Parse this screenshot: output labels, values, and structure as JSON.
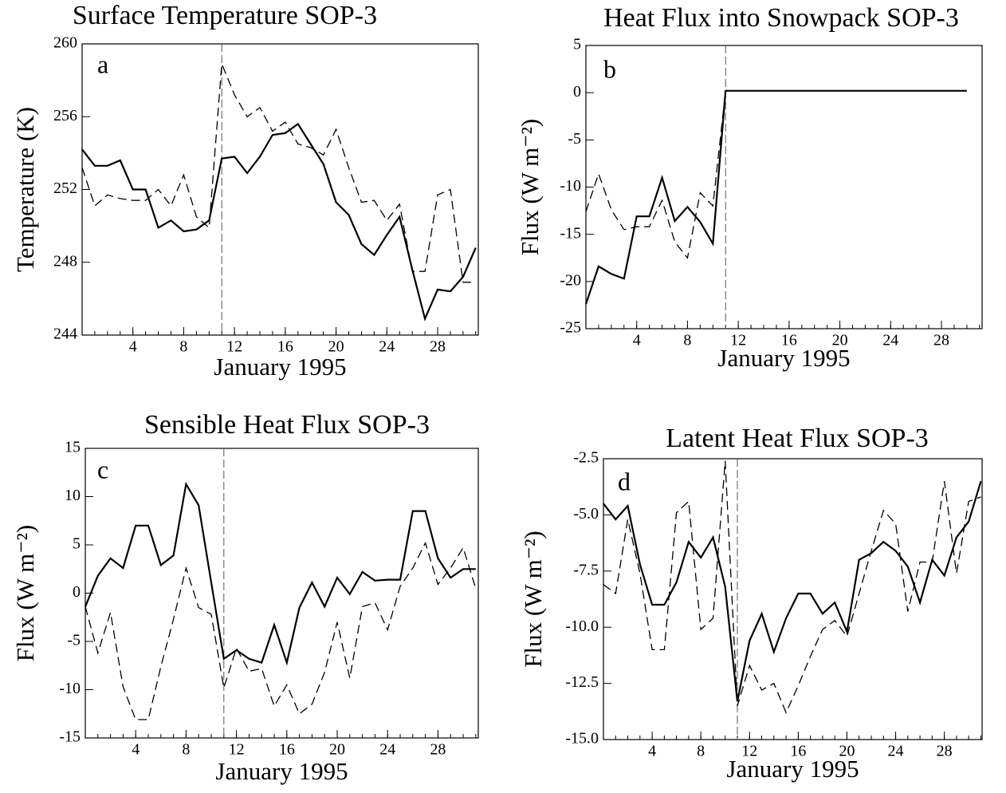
{
  "chart_data": [
    {
      "type": "line",
      "title": "Surface Temperature  SOP-3",
      "panel_label": "a",
      "x_label": "January 1995",
      "y_label": "Temperature (K)",
      "x": [
        0,
        1,
        2,
        3,
        4,
        5,
        6,
        7,
        8,
        9,
        10,
        11,
        12,
        13,
        14,
        15,
        16,
        17,
        18,
        19,
        20,
        21,
        22,
        23,
        24,
        25,
        26,
        27,
        28,
        29,
        30,
        31
      ],
      "xlim": [
        0,
        31.2
      ],
      "xticks": [
        4,
        8,
        12,
        16,
        20,
        24,
        28
      ],
      "ylim": [
        244,
        260
      ],
      "yticks": [
        244,
        248,
        252,
        256,
        260
      ],
      "vline_x": 11,
      "series": [
        {
          "color": "#000000",
          "dashed": false,
          "values": [
            254.2,
            253.3,
            253.3,
            253.6,
            252.0,
            252.0,
            249.9,
            250.3,
            249.7,
            249.8,
            250.3,
            253.7,
            253.8,
            252.9,
            253.8,
            255.0,
            255.1,
            255.6,
            254.5,
            253.4,
            251.3,
            250.6,
            249.0,
            248.4,
            249.5,
            250.5,
            247.6,
            244.9,
            246.5,
            246.4,
            247.2,
            248.8
          ]
        },
        {
          "color": "#000000",
          "dashed": true,
          "values": [
            253.2,
            251.1,
            251.7,
            251.5,
            251.4,
            251.4,
            252.0,
            251.1,
            252.8,
            250.5,
            249.9,
            258.9,
            257.2,
            256.0,
            256.5,
            255.2,
            255.7,
            254.5,
            254.3,
            253.9,
            255.3,
            253.2,
            251.3,
            251.4,
            250.3,
            251.2,
            247.5,
            247.5,
            251.7,
            252.0,
            246.9,
            246.9
          ]
        }
      ]
    },
    {
      "type": "line",
      "title": "Heat Flux into Snowpack SOP-3",
      "panel_label": "b",
      "x_label": "January 1995",
      "y_label": "Flux (W m⁻²)",
      "x": [
        0,
        1,
        2,
        3,
        4,
        5,
        6,
        7,
        8,
        9,
        10,
        11,
        12,
        13,
        14,
        15,
        16,
        17,
        18,
        19,
        20,
        21,
        22,
        23,
        24,
        25,
        26,
        27,
        28,
        29,
        30,
        31
      ],
      "xlim": [
        0,
        31.2
      ],
      "xticks": [
        4,
        8,
        12,
        16,
        20,
        24,
        28
      ],
      "ylim": [
        -25,
        5
      ],
      "yticks": [
        -25,
        -20,
        -15,
        -10,
        -5,
        0,
        5
      ],
      "vline_x": 11,
      "series": [
        {
          "color": "#000000",
          "dashed": false,
          "values": [
            -22.4,
            -18.4,
            -19.2,
            -19.7,
            -13.1,
            -13.1,
            -9.0,
            -13.6,
            -12.1,
            -13.7,
            -16.0,
            0.2,
            0.2,
            0.2,
            0.2,
            0.2,
            0.2,
            0.2,
            0.2,
            0.2,
            0.2,
            0.2,
            0.2,
            0.2,
            0.2,
            0.2,
            0.2,
            0.2,
            0.2,
            0.2,
            0.2,
            null
          ]
        },
        {
          "color": "#000000",
          "dashed": true,
          "values": [
            -12.6,
            -8.6,
            -12.4,
            -14.5,
            -14.2,
            -14.2,
            -11.4,
            -15.8,
            -17.5,
            -10.6,
            -12.0,
            0.2,
            null,
            null,
            null,
            null,
            null,
            null,
            null,
            null,
            null,
            null,
            null,
            null,
            null,
            null,
            null,
            null,
            null,
            null,
            null,
            null
          ]
        }
      ]
    },
    {
      "type": "line",
      "title": "Sensible Heat Flux  SOP-3",
      "panel_label": "c",
      "x_label": "January 1995",
      "y_label": "Flux (W m⁻²)",
      "x": [
        0,
        1,
        2,
        3,
        4,
        5,
        6,
        7,
        8,
        9,
        10,
        11,
        12,
        13,
        14,
        15,
        16,
        17,
        18,
        19,
        20,
        21,
        22,
        23,
        24,
        25,
        26,
        27,
        28,
        29,
        30,
        31
      ],
      "xlim": [
        0,
        31.2
      ],
      "xticks": [
        4,
        8,
        12,
        16,
        20,
        24,
        28
      ],
      "ylim": [
        -15,
        15
      ],
      "yticks": [
        -15,
        -10,
        -5,
        0,
        5,
        10,
        15
      ],
      "vline_x": 11,
      "series": [
        {
          "color": "#000000",
          "dashed": false,
          "values": [
            -1.4,
            1.8,
            3.6,
            2.6,
            7.0,
            7.0,
            2.9,
            3.9,
            11.3,
            9.1,
            1.1,
            -6.8,
            -5.9,
            -6.8,
            -7.2,
            -3.3,
            -7.2,
            -1.5,
            1.1,
            -1.4,
            1.6,
            -0.1,
            2.2,
            1.3,
            1.4,
            1.4,
            8.5,
            8.5,
            3.6,
            1.6,
            2.5,
            2.5
          ]
        },
        {
          "color": "#000000",
          "dashed": true,
          "values": [
            -1.4,
            -6.2,
            -2.0,
            -9.7,
            -13.1,
            -13.1,
            -7.6,
            -2.7,
            2.6,
            -1.5,
            -2.2,
            -9.8,
            -5.7,
            -8.1,
            -7.8,
            -11.7,
            -9.5,
            -12.5,
            -11.5,
            -8.2,
            -3.0,
            -8.8,
            -1.4,
            -1.0,
            -3.8,
            0.7,
            2.6,
            5.2,
            0.9,
            2.6,
            4.7,
            0.5
          ]
        }
      ]
    },
    {
      "type": "line",
      "title": "Latent Heat Flux   SOP-3",
      "panel_label": "d",
      "x_label": "January 1995",
      "y_label": "Flux (W m⁻²)",
      "x": [
        0,
        1,
        2,
        3,
        4,
        5,
        6,
        7,
        8,
        9,
        10,
        11,
        12,
        13,
        14,
        15,
        16,
        17,
        18,
        19,
        20,
        21,
        22,
        23,
        24,
        25,
        26,
        27,
        28,
        29,
        30,
        31
      ],
      "xlim": [
        0,
        31.1
      ],
      "xticks": [
        4,
        8,
        12,
        16,
        20,
        24,
        28
      ],
      "ylim": [
        -15,
        -2.5
      ],
      "yticks": [
        {
          "value": -15,
          "label": "-15.0"
        },
        -12.5,
        {
          "value": -10,
          "label": "-10.0"
        },
        -7.5,
        {
          "value": -5,
          "label": "-5.0"
        },
        -2.5
      ],
      "vline_x": 11,
      "series": [
        {
          "color": "#000000",
          "dashed": false,
          "values": [
            -4.5,
            -5.2,
            -4.6,
            -7.2,
            -9.0,
            -9.0,
            -8.0,
            -6.2,
            -6.9,
            -6.0,
            -8.2,
            -13.3,
            -10.6,
            -9.4,
            -11.1,
            -9.6,
            -8.5,
            -8.5,
            -9.4,
            -8.9,
            -10.2,
            -7.0,
            -6.7,
            -6.2,
            -6.6,
            -7.3,
            -8.9,
            -7.0,
            -7.7,
            -6.0,
            -5.3,
            -3.5
          ]
        },
        {
          "color": "#000000",
          "dashed": true,
          "values": [
            -8.1,
            -8.5,
            -5.2,
            -7.6,
            -11.0,
            -11.0,
            -4.9,
            -4.4,
            -10.1,
            -9.6,
            -2.6,
            -13.5,
            -11.7,
            -12.8,
            -12.5,
            -13.8,
            -12.6,
            -11.3,
            -10.1,
            -9.7,
            -10.4,
            -8.5,
            -6.6,
            -4.8,
            -5.4,
            -9.3,
            -7.1,
            -7.1,
            -3.5,
            -7.6,
            -4.4,
            -4.2
          ]
        }
      ]
    }
  ]
}
